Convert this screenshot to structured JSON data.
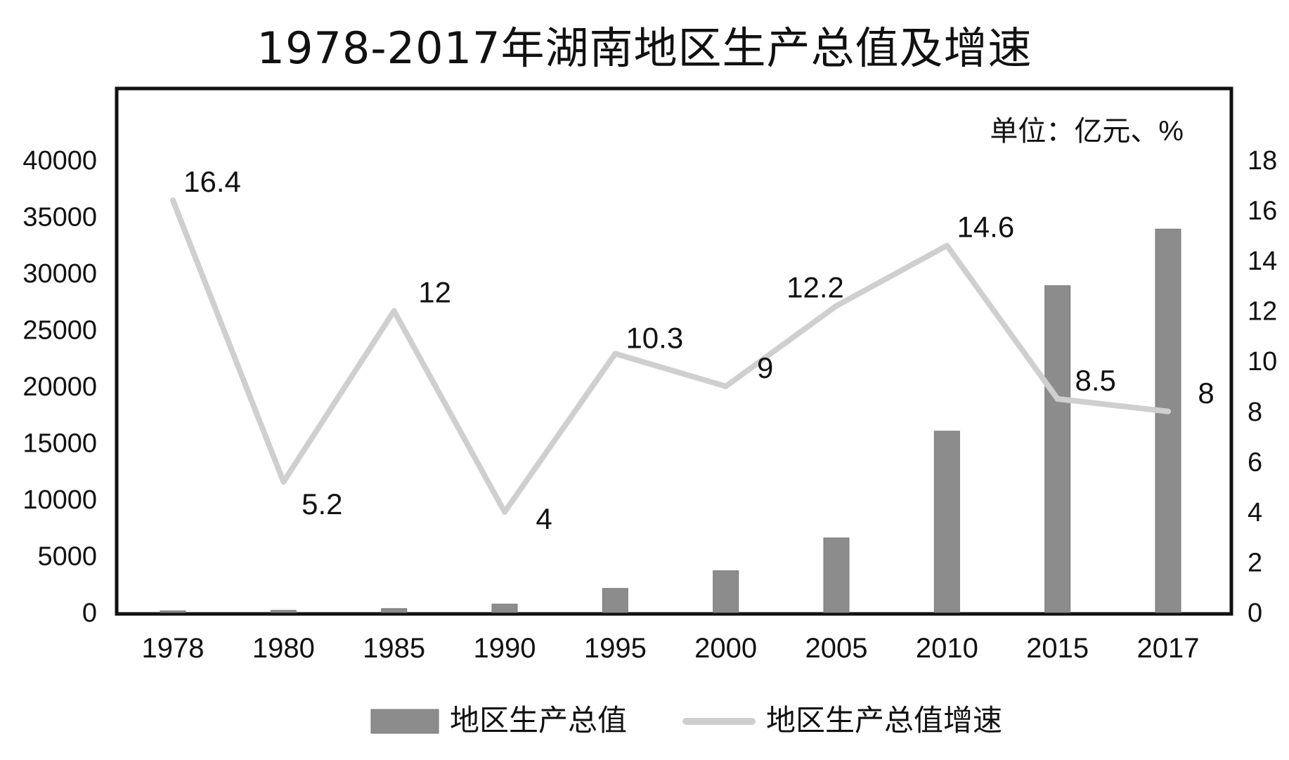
{
  "chart_data": {
    "type": "bar",
    "title": "1978-2017年湖南地区生产总值及增速",
    "unit_label": "单位：亿元、%",
    "categories": [
      "1978",
      "1980",
      "1985",
      "1990",
      "1995",
      "2000",
      "2005",
      "2010",
      "2015",
      "2017"
    ],
    "series": [
      {
        "name": "地区生产总值",
        "type": "bar",
        "axis": "left",
        "color": "#8c8c8c",
        "values": [
          147,
          191,
          350,
          744,
          2132,
          3692,
          6596,
          16038,
          28902,
          33903
        ]
      },
      {
        "name": "地区生产总值增速",
        "type": "line",
        "axis": "right",
        "color": "#cfcfcf",
        "values": [
          16.4,
          5.2,
          12,
          4,
          10.3,
          9,
          12.2,
          14.6,
          8.5,
          8
        ],
        "data_labels": [
          "16.4",
          "5.2",
          "12",
          "4",
          "10.3",
          "9",
          "12.2",
          "14.6",
          "8.5",
          "8"
        ]
      }
    ],
    "y_left": {
      "ylim": [
        0,
        40000
      ],
      "ticks": [
        "0",
        "5000",
        "10000",
        "15000",
        "20000",
        "25000",
        "30000",
        "35000",
        "40000"
      ]
    },
    "y_right": {
      "ylim": [
        0,
        18
      ],
      "ticks": [
        "0",
        "2",
        "4",
        "6",
        "8",
        "10",
        "12",
        "14",
        "16",
        "18"
      ]
    },
    "legend": {
      "position": "bottom",
      "items": [
        "地区生产总值",
        "地区生产总值增速"
      ]
    },
    "grid": false
  }
}
